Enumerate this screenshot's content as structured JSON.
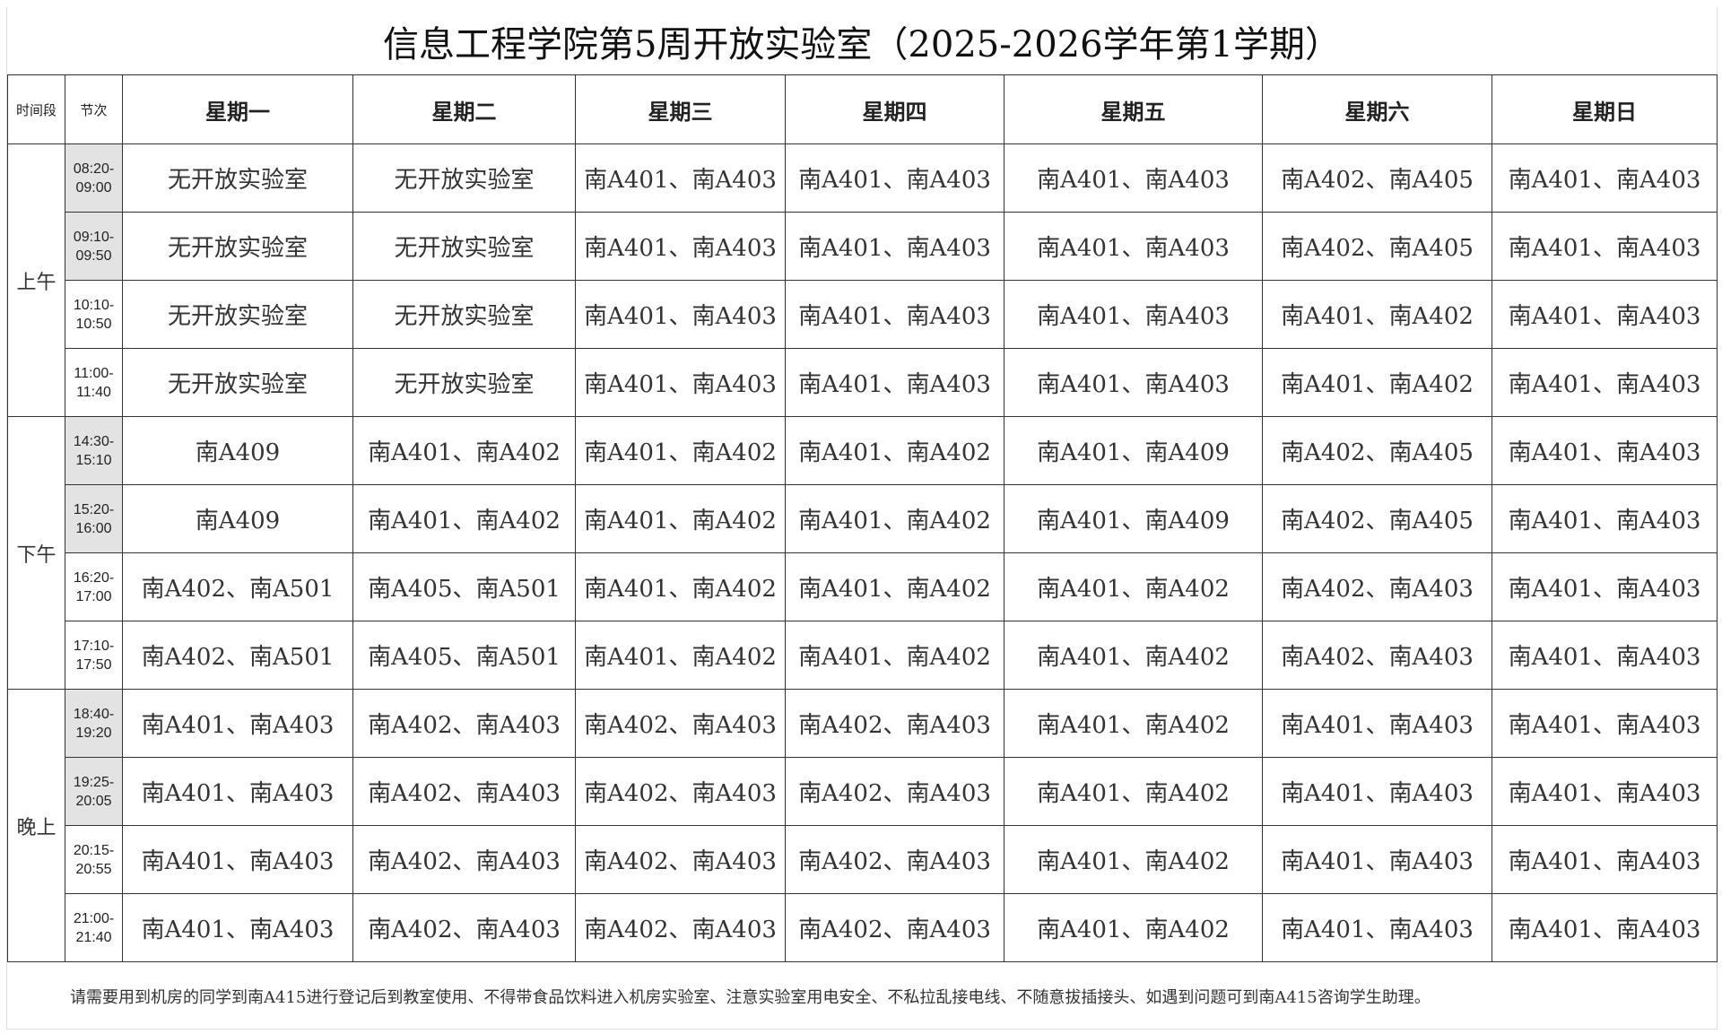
{
  "title": "信息工程学院第5周开放实验室（2025-2026学年第1学期）",
  "header": {
    "period_col": "时间段",
    "session_col": "节次",
    "days": [
      "星期一",
      "星期二",
      "星期三",
      "星期四",
      "星期五",
      "星期六",
      "星期日"
    ]
  },
  "periods": [
    "上午",
    "下午",
    "晚上"
  ],
  "rows": [
    {
      "time": "08:20-\n09:00",
      "cells": [
        "无开放实验室",
        "无开放实验室",
        "南A401、南A403",
        "南A401、南A403",
        "南A401、南A403",
        "南A402、南A405",
        "南A401、南A403"
      ]
    },
    {
      "time": "09:10-\n09:50",
      "cells": [
        "无开放实验室",
        "无开放实验室",
        "南A401、南A403",
        "南A401、南A403",
        "南A401、南A403",
        "南A402、南A405",
        "南A401、南A403"
      ]
    },
    {
      "time": "10:10-\n10:50",
      "cells": [
        "无开放实验室",
        "无开放实验室",
        "南A401、南A403",
        "南A401、南A403",
        "南A401、南A403",
        "南A401、南A402",
        "南A401、南A403"
      ]
    },
    {
      "time": "11:00-\n11:40",
      "cells": [
        "无开放实验室",
        "无开放实验室",
        "南A401、南A403",
        "南A401、南A403",
        "南A401、南A403",
        "南A401、南A402",
        "南A401、南A403"
      ]
    },
    {
      "time": "14:30-\n15:10",
      "cells": [
        "南A409",
        "南A401、南A402",
        "南A401、南A402",
        "南A401、南A402",
        "南A401、南A409",
        "南A402、南A405",
        "南A401、南A403"
      ]
    },
    {
      "time": "15:20-\n16:00",
      "cells": [
        "南A409",
        "南A401、南A402",
        "南A401、南A402",
        "南A401、南A402",
        "南A401、南A409",
        "南A402、南A405",
        "南A401、南A403"
      ]
    },
    {
      "time": "16:20-\n17:00",
      "cells": [
        "南A402、南A501",
        "南A405、南A501",
        "南A401、南A402",
        "南A401、南A402",
        "南A401、南A402",
        "南A402、南A403",
        "南A401、南A403"
      ]
    },
    {
      "time": "17:10-\n17:50",
      "cells": [
        "南A402、南A501",
        "南A405、南A501",
        "南A401、南A402",
        "南A401、南A402",
        "南A401、南A402",
        "南A402、南A403",
        "南A401、南A403"
      ]
    },
    {
      "time": "18:40-\n19:20",
      "cells": [
        "南A401、南A403",
        "南A402、南A403",
        "南A402、南A403",
        "南A402、南A403",
        "南A401、南A402",
        "南A401、南A403",
        "南A401、南A403"
      ]
    },
    {
      "time": "19:25-\n20:05",
      "cells": [
        "南A401、南A403",
        "南A402、南A403",
        "南A402、南A403",
        "南A402、南A403",
        "南A401、南A402",
        "南A401、南A403",
        "南A401、南A403"
      ]
    },
    {
      "time": "20:15-\n20:55",
      "cells": [
        "南A401、南A403",
        "南A402、南A403",
        "南A402、南A403",
        "南A402、南A403",
        "南A401、南A402",
        "南A401、南A403",
        "南A401、南A403"
      ]
    },
    {
      "time": "21:00-\n21:40",
      "cells": [
        "南A401、南A403",
        "南A402、南A403",
        "南A402、南A403",
        "南A402、南A403",
        "南A401、南A402",
        "南A401、南A403",
        "南A401、南A403"
      ]
    }
  ],
  "footer": "请需要用到机房的同学到南A415进行登记后到教室使用、不得带食品饮料进入机房实验室、注意实验室用电安全、不私拉乱接电线、不随意拔插接头、如遇到问题可到南A415咨询学生助理。"
}
